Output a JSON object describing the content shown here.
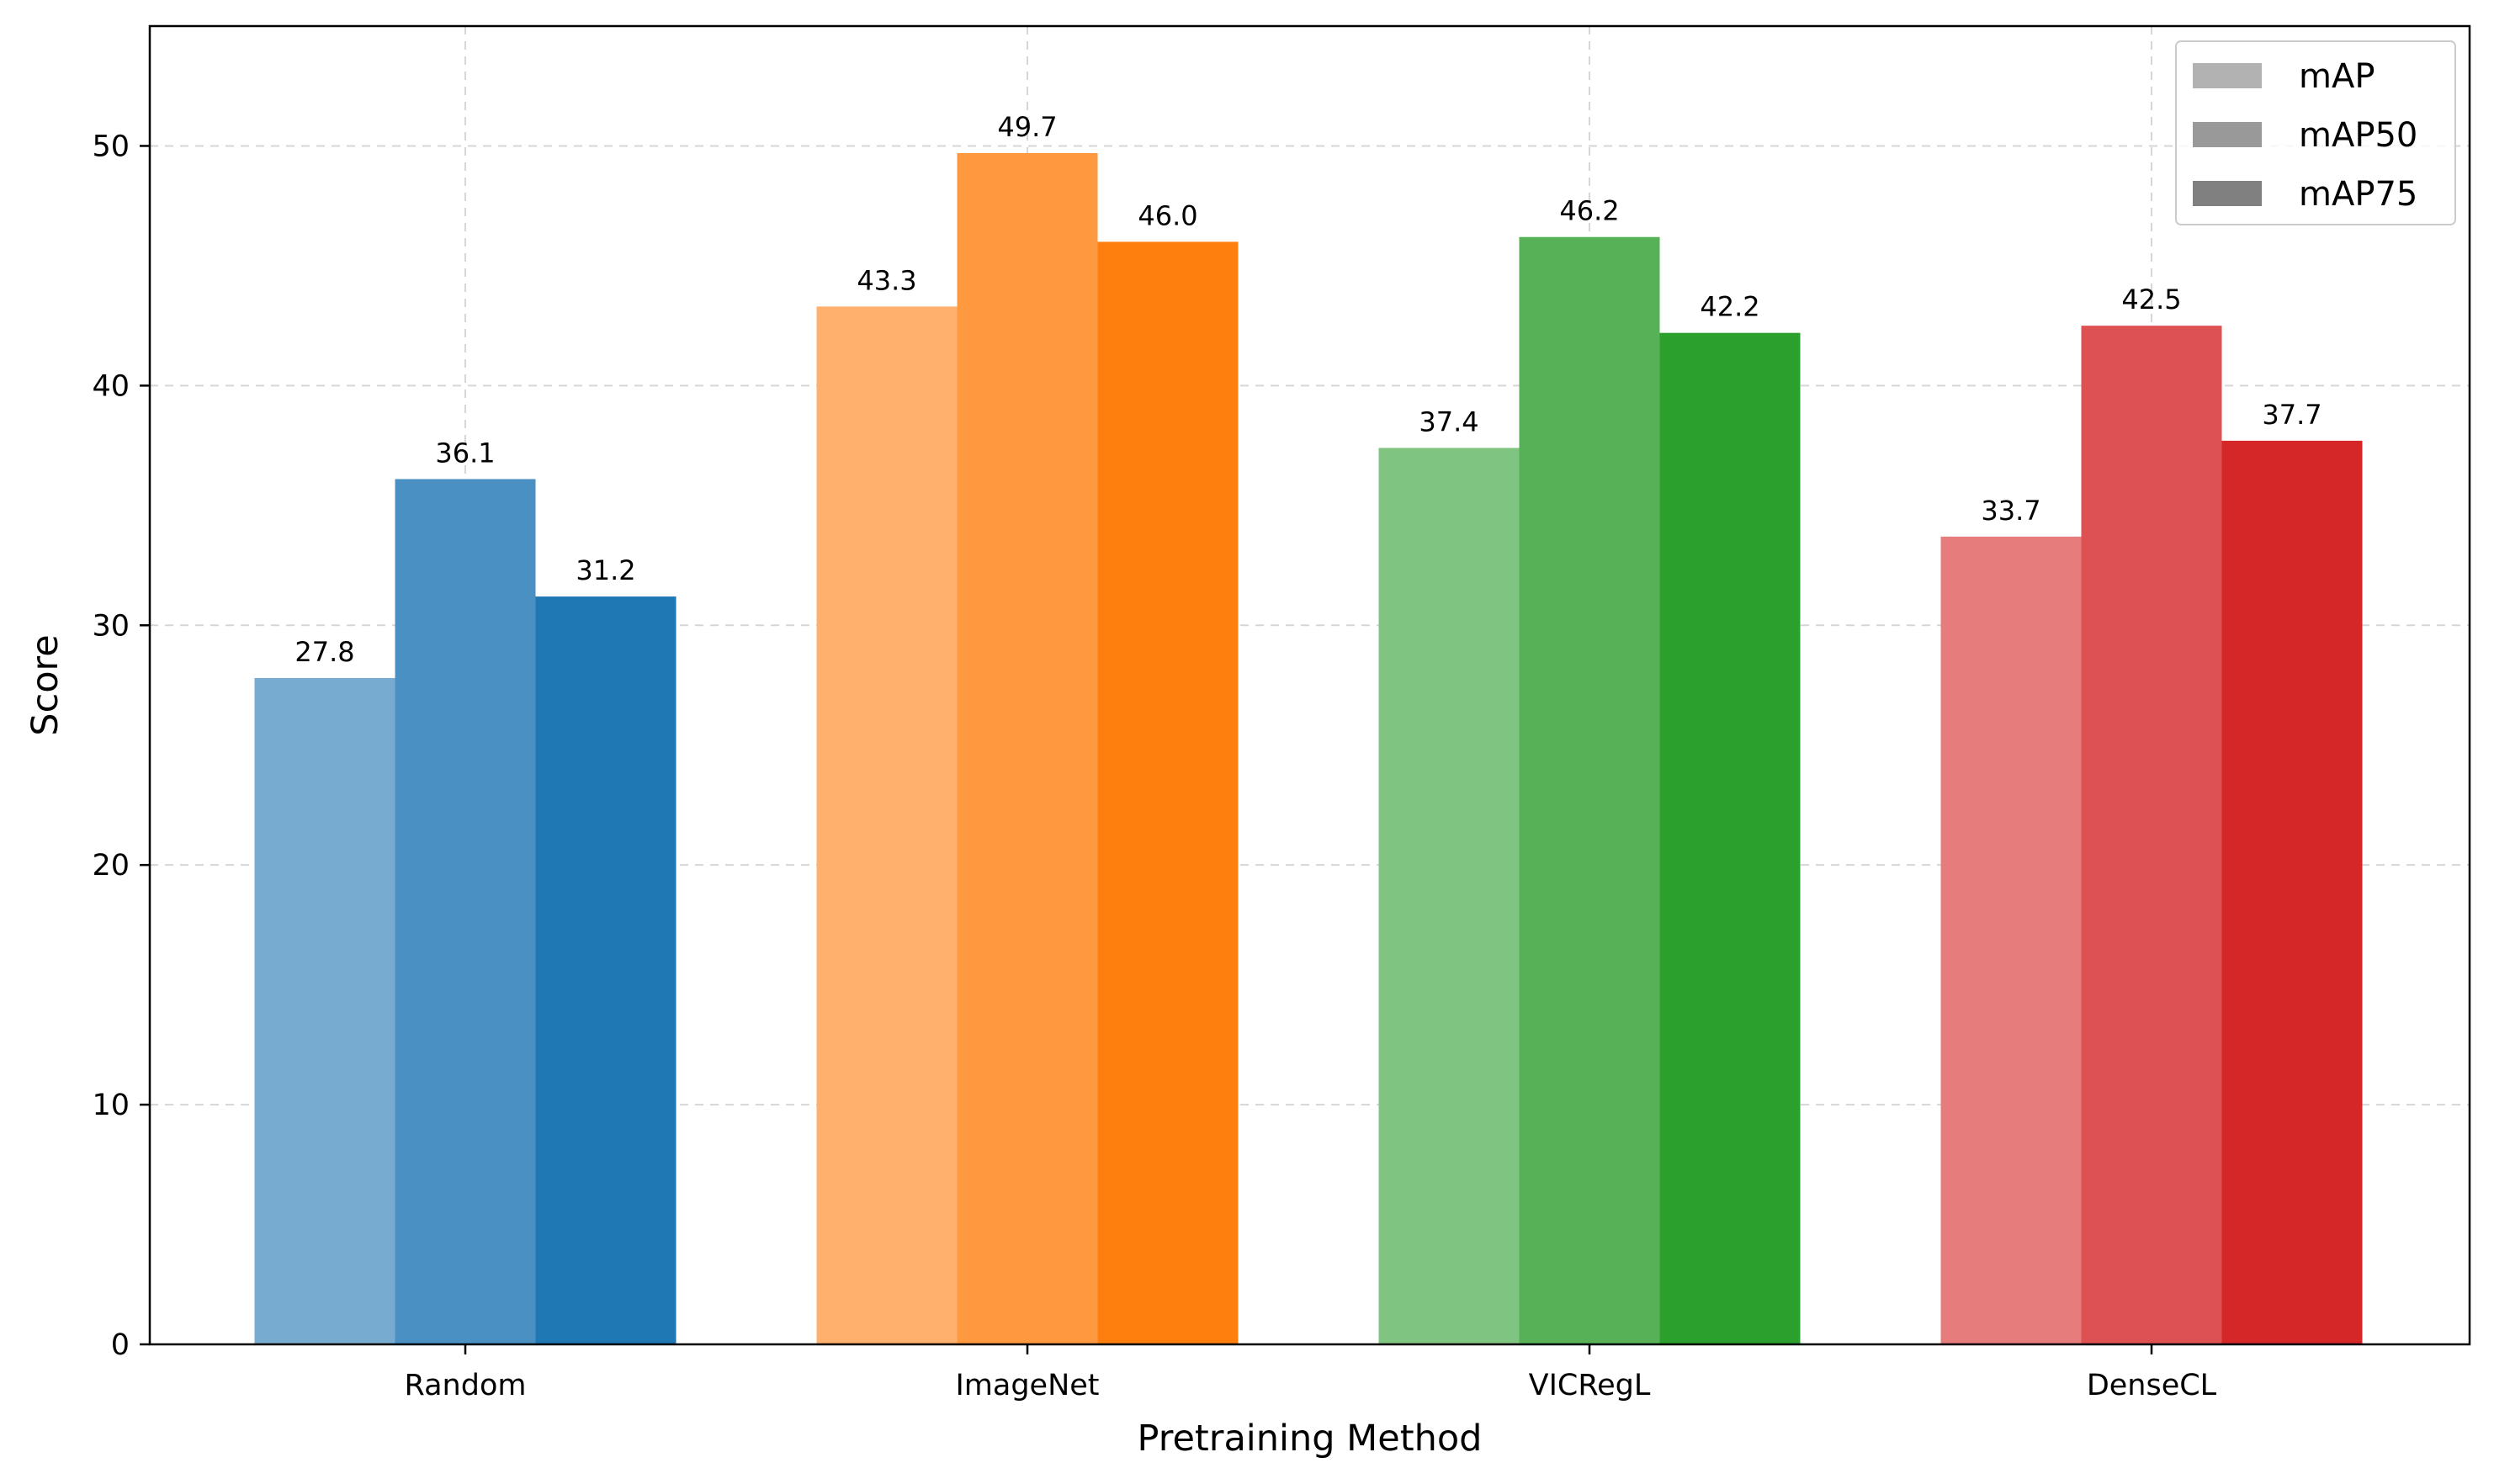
{
  "chart_data": {
    "type": "bar",
    "title": "",
    "xlabel": "Pretraining Method",
    "ylabel": "Score",
    "ylim": [
      0,
      55
    ],
    "yticks": [
      0,
      10,
      20,
      30,
      40,
      50
    ],
    "grid": true,
    "legend": {
      "position": "top-right"
    },
    "categories": [
      "Random",
      "ImageNet",
      "VICRegL",
      "DenseCL"
    ],
    "series": [
      {
        "name": "mAP",
        "values": [
          27.8,
          43.3,
          37.4,
          33.7
        ],
        "value_labels": [
          "27.8",
          "43.3",
          "37.4",
          "33.7"
        ],
        "legend_color": "#b2b2b2"
      },
      {
        "name": "mAP50",
        "values": [
          36.1,
          49.7,
          46.2,
          42.5
        ],
        "value_labels": [
          "36.1",
          "49.7",
          "46.2",
          "42.5"
        ],
        "legend_color": "#999999"
      },
      {
        "name": "mAP75",
        "values": [
          31.2,
          46.0,
          42.2,
          37.7
        ],
        "value_labels": [
          "31.2",
          "46.0",
          "42.2",
          "37.7"
        ],
        "legend_color": "#808080"
      }
    ],
    "category_colors": {
      "Random": [
        "#77abd0",
        "#4a90c2",
        "#1f77b4"
      ],
      "ImageNet": [
        "#ffb06c",
        "#ff9940",
        "#ff7f0e"
      ],
      "VICRegL": [
        "#80c481",
        "#57b257",
        "#2ca02c"
      ],
      "DenseCL": [
        "#e67c7c",
        "#de5152",
        "#d62728"
      ]
    }
  }
}
